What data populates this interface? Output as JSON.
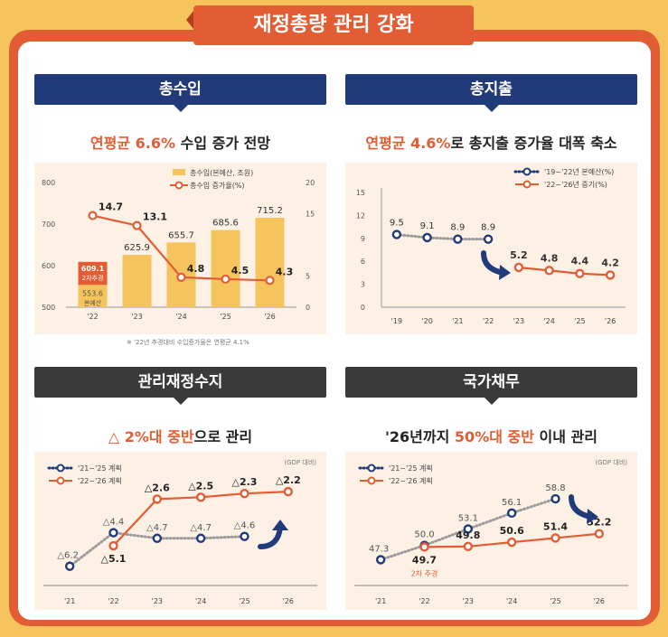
{
  "title": "재정총량 관리 강화",
  "panels": {
    "revenue": {
      "header": "총수입",
      "subtitle_hl": "연평균 6.6%",
      "subtitle_rest": " 수입 증가 전망",
      "note": "※ '22년 추경대비 수입증가율은 연평균 4.1%"
    },
    "expenditure": {
      "header": "총지출",
      "subtitle_hl": "연평균 4.6%",
      "subtitle_rest": "로 총지출 증가율 대폭 축소"
    },
    "balance": {
      "header": "관리재정수지",
      "subtitle_pre": "△ 2%대 중반",
      "subtitle_rest": "으로 관리"
    },
    "debt": {
      "header": "국가채무",
      "subtitle_pre": "'26년까지 ",
      "subtitle_hl": "50%대 중반",
      "subtitle_rest": " 이내 관리"
    }
  },
  "colors": {
    "orange": "#e25d33",
    "navy": "#213a7a",
    "yellow": "#f6c45c",
    "gray": "#9a9a9a"
  },
  "chart_data": [
    {
      "type": "bar",
      "categories": [
        "'22",
        "'23",
        "'24",
        "'25",
        "'26"
      ],
      "series": [
        {
          "name": "총수입(본예산, 조원)",
          "values": [
            553.6,
            625.9,
            655.7,
            685.6,
            715.2
          ]
        },
        {
          "name": "총수입 증가율(%)",
          "type": "line",
          "axis": "right",
          "values": [
            14.7,
            13.1,
            4.8,
            4.5,
            4.3
          ]
        }
      ],
      "extra_bar": {
        "value": 609.1,
        "label": "2차추경",
        "base_label": "본예산"
      },
      "ylim": [
        500,
        800
      ],
      "yticks": [
        500,
        600,
        700,
        800
      ],
      "y2lim": [
        0,
        20
      ],
      "y2ticks": [
        0,
        5,
        15,
        20
      ],
      "legend": "top-right"
    },
    {
      "type": "line",
      "categories": [
        "'19",
        "'20",
        "'21",
        "'22",
        "'23",
        "'24",
        "'25",
        "'26"
      ],
      "series": [
        {
          "name": "'19~'22년 본예산(%)",
          "values": [
            9.5,
            9.1,
            8.9,
            8.9,
            null,
            null,
            null,
            null
          ]
        },
        {
          "name": "'22~'26년 증기(%)",
          "values": [
            null,
            null,
            null,
            null,
            5.2,
            4.8,
            4.4,
            4.2
          ]
        }
      ],
      "ylim": [
        0,
        15
      ],
      "yticks": [
        0,
        3,
        6,
        9,
        12,
        15
      ],
      "legend": "top-right"
    },
    {
      "type": "line",
      "unit_note": "(GDP 대비)",
      "categories": [
        "'21",
        "'22",
        "'23",
        "'24",
        "'25",
        "'26"
      ],
      "series": [
        {
          "name": "'21~'25 계획",
          "values": [
            -6.2,
            -4.4,
            -4.7,
            -4.7,
            -4.6,
            null
          ],
          "labels": [
            "△6.2",
            "△4.4",
            "△4.7",
            "△4.7",
            "△4.6",
            ""
          ]
        },
        {
          "name": "'22~'26 계획",
          "values": [
            null,
            -5.1,
            -2.6,
            -2.5,
            -2.3,
            -2.2
          ],
          "labels": [
            "",
            "△5.1",
            "△2.6",
            "△2.5",
            "△2.3",
            "△2.2"
          ]
        }
      ],
      "legend": "top-left"
    },
    {
      "type": "line",
      "unit_note": "(GDP 대비)",
      "categories": [
        "'21",
        "'22",
        "'23",
        "'24",
        "'25",
        "'26"
      ],
      "series": [
        {
          "name": "'21~'25 계획",
          "values": [
            47.3,
            50.0,
            53.1,
            56.1,
            58.8,
            null
          ],
          "labels": [
            "47.3",
            "50.0",
            "53.1",
            "56.1",
            "58.8",
            ""
          ]
        },
        {
          "name": "'22~'26 계획",
          "values": [
            null,
            49.7,
            49.8,
            50.6,
            51.4,
            52.2
          ],
          "labels": [
            "",
            "49.7",
            "49.8",
            "50.6",
            "51.4",
            "52.2"
          ]
        }
      ],
      "annotation": "2차 추경",
      "legend": "top-left"
    }
  ]
}
